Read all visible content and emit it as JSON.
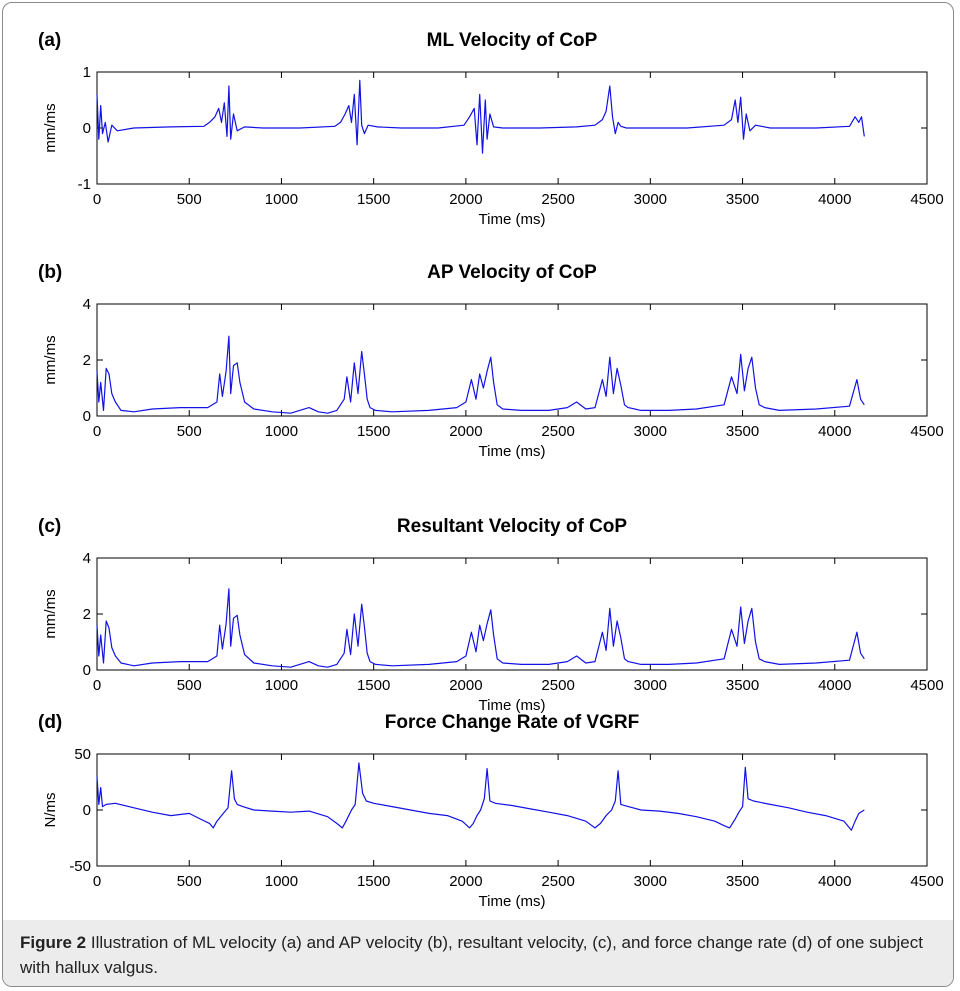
{
  "colors": {
    "line": "#1212e6",
    "axis": "#000000",
    "caption_bg": "#ececec"
  },
  "caption": {
    "label": "Figure 2",
    "text": " Illustration of ML velocity (a) and AP velocity (b), resultant velocity, (c), and force change rate (d) of one subject with hallux valgus."
  },
  "chart_data": [
    {
      "type": "line",
      "panel_label": "(a)",
      "title": "ML Velocity of CoP",
      "xlabel": "Time (ms)",
      "ylabel": "mm/ms",
      "xlim": [
        0,
        4500
      ],
      "ylim": [
        -1,
        1
      ],
      "xticks": [
        0,
        500,
        1000,
        1500,
        2000,
        2500,
        3000,
        3500,
        4000,
        4500
      ],
      "yticks": [
        -1,
        0,
        1
      ],
      "grid": false,
      "series": [
        {
          "x": [
            0,
            10,
            20,
            30,
            45,
            60,
            80,
            110,
            200,
            400,
            580,
            610,
            640,
            660,
            675,
            690,
            705,
            715,
            725,
            740,
            760,
            800,
            900,
            1100,
            1290,
            1320,
            1345,
            1365,
            1380,
            1395,
            1410,
            1425,
            1435,
            1450,
            1470,
            1520,
            1650,
            1850,
            1990,
            2020,
            2045,
            2060,
            2075,
            2090,
            2105,
            2115,
            2130,
            2150,
            2200,
            2400,
            2600,
            2700,
            2740,
            2760,
            2780,
            2795,
            2810,
            2825,
            2840,
            2870,
            2950,
            3200,
            3400,
            3440,
            3460,
            3475,
            3490,
            3505,
            3520,
            3540,
            3570,
            3650,
            3900,
            4080,
            4110,
            4130,
            4145,
            4160
          ],
          "y": [
            0.6,
            -0.2,
            0.4,
            -0.1,
            0.1,
            -0.25,
            0.05,
            -0.05,
            0.0,
            0.02,
            0.03,
            0.1,
            0.2,
            0.35,
            0.1,
            0.45,
            -0.15,
            0.75,
            -0.2,
            0.25,
            -0.05,
            0.02,
            0.0,
            0.0,
            0.03,
            0.1,
            0.25,
            0.4,
            0.1,
            0.6,
            -0.3,
            0.85,
            0.05,
            -0.1,
            0.05,
            0.02,
            0.0,
            0.0,
            0.05,
            0.2,
            0.35,
            -0.3,
            0.6,
            -0.45,
            0.5,
            -0.2,
            0.25,
            0.02,
            0.0,
            0.0,
            0.02,
            0.05,
            0.15,
            0.3,
            0.75,
            0.2,
            -0.1,
            0.1,
            0.03,
            0.0,
            0.0,
            0.0,
            0.05,
            0.15,
            0.5,
            0.1,
            0.55,
            -0.2,
            0.25,
            -0.05,
            0.05,
            0.0,
            0.0,
            0.03,
            0.2,
            0.1,
            0.2,
            -0.15
          ]
        }
      ]
    },
    {
      "type": "line",
      "panel_label": "(b)",
      "title": "AP Velocity of CoP",
      "xlabel": "Time (ms)",
      "ylabel": "mm/ms",
      "xlim": [
        0,
        4500
      ],
      "ylim": [
        0,
        4
      ],
      "xticks": [
        0,
        500,
        1000,
        1500,
        2000,
        2500,
        3000,
        3500,
        4000,
        4500
      ],
      "yticks": [
        0,
        2,
        4
      ],
      "grid": false,
      "series": [
        {
          "x": [
            0,
            10,
            20,
            35,
            50,
            65,
            80,
            100,
            130,
            200,
            300,
            450,
            600,
            650,
            665,
            680,
            700,
            715,
            725,
            740,
            760,
            775,
            800,
            850,
            950,
            1050,
            1150,
            1200,
            1250,
            1300,
            1340,
            1355,
            1375,
            1395,
            1415,
            1435,
            1450,
            1465,
            1480,
            1510,
            1600,
            1800,
            1950,
            2000,
            2030,
            2055,
            2075,
            2095,
            2115,
            2135,
            2150,
            2170,
            2200,
            2300,
            2450,
            2550,
            2600,
            2650,
            2700,
            2740,
            2760,
            2780,
            2800,
            2820,
            2840,
            2860,
            2880,
            2950,
            3100,
            3250,
            3400,
            3440,
            3470,
            3490,
            3510,
            3530,
            3550,
            3570,
            3590,
            3620,
            3700,
            3900,
            4080,
            4120,
            4140,
            4160
          ],
          "y": [
            1.6,
            0.5,
            1.2,
            0.2,
            1.7,
            1.5,
            0.8,
            0.5,
            0.2,
            0.15,
            0.25,
            0.3,
            0.3,
            0.5,
            1.5,
            0.7,
            1.6,
            2.85,
            0.8,
            1.8,
            1.9,
            1.2,
            0.5,
            0.25,
            0.15,
            0.1,
            0.3,
            0.15,
            0.1,
            0.2,
            0.6,
            1.4,
            0.5,
            1.9,
            0.8,
            2.3,
            1.5,
            0.6,
            0.3,
            0.2,
            0.15,
            0.2,
            0.3,
            0.5,
            1.3,
            0.6,
            1.5,
            1.0,
            1.6,
            2.1,
            1.2,
            0.4,
            0.25,
            0.2,
            0.2,
            0.3,
            0.5,
            0.25,
            0.3,
            1.3,
            0.7,
            2.1,
            0.8,
            1.7,
            1.1,
            0.4,
            0.3,
            0.2,
            0.2,
            0.25,
            0.4,
            1.4,
            0.8,
            2.2,
            0.9,
            1.7,
            2.1,
            1.0,
            0.4,
            0.3,
            0.2,
            0.25,
            0.35,
            1.3,
            0.6,
            0.4
          ]
        }
      ]
    },
    {
      "type": "line",
      "panel_label": "(c)",
      "title": "Resultant Velocity of CoP",
      "xlabel": "Time (ms)",
      "ylabel": "mm/ms",
      "xlim": [
        0,
        4500
      ],
      "ylim": [
        0,
        4
      ],
      "xticks": [
        0,
        500,
        1000,
        1500,
        2000,
        2500,
        3000,
        3500,
        4000,
        4500
      ],
      "yticks": [
        0,
        2,
        4
      ],
      "grid": false,
      "series": [
        {
          "x": [
            0,
            10,
            20,
            35,
            50,
            65,
            80,
            100,
            130,
            200,
            300,
            450,
            600,
            650,
            665,
            680,
            700,
            715,
            725,
            740,
            760,
            775,
            800,
            850,
            950,
            1050,
            1150,
            1200,
            1250,
            1300,
            1340,
            1355,
            1375,
            1395,
            1415,
            1435,
            1450,
            1465,
            1480,
            1510,
            1600,
            1800,
            1950,
            2000,
            2030,
            2055,
            2075,
            2095,
            2115,
            2135,
            2150,
            2170,
            2200,
            2300,
            2450,
            2550,
            2600,
            2650,
            2700,
            2740,
            2760,
            2780,
            2800,
            2820,
            2840,
            2860,
            2880,
            2950,
            3100,
            3250,
            3400,
            3440,
            3470,
            3490,
            3510,
            3530,
            3550,
            3570,
            3590,
            3620,
            3700,
            3900,
            4080,
            4120,
            4140,
            4160
          ],
          "y": [
            1.6,
            0.5,
            1.25,
            0.25,
            1.75,
            1.5,
            0.8,
            0.5,
            0.25,
            0.15,
            0.25,
            0.3,
            0.3,
            0.5,
            1.6,
            0.75,
            1.65,
            2.9,
            0.85,
            1.85,
            1.95,
            1.25,
            0.55,
            0.25,
            0.15,
            0.1,
            0.3,
            0.15,
            0.1,
            0.2,
            0.6,
            1.45,
            0.55,
            2.0,
            0.85,
            2.35,
            1.55,
            0.6,
            0.3,
            0.2,
            0.15,
            0.2,
            0.3,
            0.5,
            1.35,
            0.65,
            1.6,
            1.05,
            1.65,
            2.15,
            1.25,
            0.4,
            0.25,
            0.2,
            0.2,
            0.3,
            0.5,
            0.25,
            0.3,
            1.35,
            0.7,
            2.2,
            0.85,
            1.75,
            1.15,
            0.4,
            0.3,
            0.2,
            0.2,
            0.25,
            0.4,
            1.45,
            0.85,
            2.25,
            0.95,
            1.75,
            2.2,
            1.0,
            0.4,
            0.3,
            0.2,
            0.25,
            0.35,
            1.35,
            0.6,
            0.4
          ]
        }
      ]
    },
    {
      "type": "line",
      "panel_label": "(d)",
      "title": "Force Change Rate of VGRF",
      "xlabel": "Time (ms)",
      "ylabel": "N/ms",
      "xlim": [
        0,
        4500
      ],
      "ylim": [
        -50,
        50
      ],
      "xticks": [
        0,
        500,
        1000,
        1500,
        2000,
        2500,
        3000,
        3500,
        4000,
        4500
      ],
      "yticks": [
        -50,
        0,
        50
      ],
      "grid": false,
      "series": [
        {
          "x": [
            0,
            10,
            20,
            30,
            50,
            100,
            200,
            300,
            400,
            500,
            560,
            610,
            630,
            650,
            680,
            710,
            730,
            745,
            760,
            790,
            850,
            950,
            1050,
            1150,
            1250,
            1300,
            1330,
            1350,
            1380,
            1400,
            1420,
            1440,
            1460,
            1500,
            1600,
            1700,
            1800,
            1900,
            1980,
            2020,
            2040,
            2060,
            2080,
            2100,
            2115,
            2130,
            2160,
            2250,
            2350,
            2450,
            2550,
            2650,
            2700,
            2730,
            2760,
            2790,
            2810,
            2825,
            2840,
            2880,
            2950,
            3050,
            3150,
            3250,
            3350,
            3400,
            3430,
            3460,
            3480,
            3500,
            3515,
            3530,
            3560,
            3650,
            3750,
            3850,
            3950,
            4050,
            4090,
            4110,
            4130,
            4160
          ],
          "y": [
            30,
            5,
            20,
            3,
            5,
            6,
            2,
            -2,
            -5,
            -3,
            -8,
            -12,
            -16,
            -10,
            -4,
            2,
            35,
            10,
            5,
            3,
            0,
            -1,
            -2,
            -1,
            -6,
            -12,
            -16,
            -10,
            0,
            5,
            42,
            15,
            8,
            6,
            3,
            0,
            -3,
            -5,
            -10,
            -16,
            -12,
            -5,
            0,
            10,
            37,
            8,
            6,
            4,
            1,
            -2,
            -5,
            -10,
            -16,
            -12,
            -5,
            0,
            8,
            35,
            5,
            3,
            0,
            -1,
            -3,
            -6,
            -10,
            -14,
            -16,
            -8,
            -2,
            3,
            38,
            10,
            8,
            5,
            2,
            -2,
            -5,
            -10,
            -18,
            -10,
            -3,
            0
          ]
        }
      ]
    }
  ]
}
